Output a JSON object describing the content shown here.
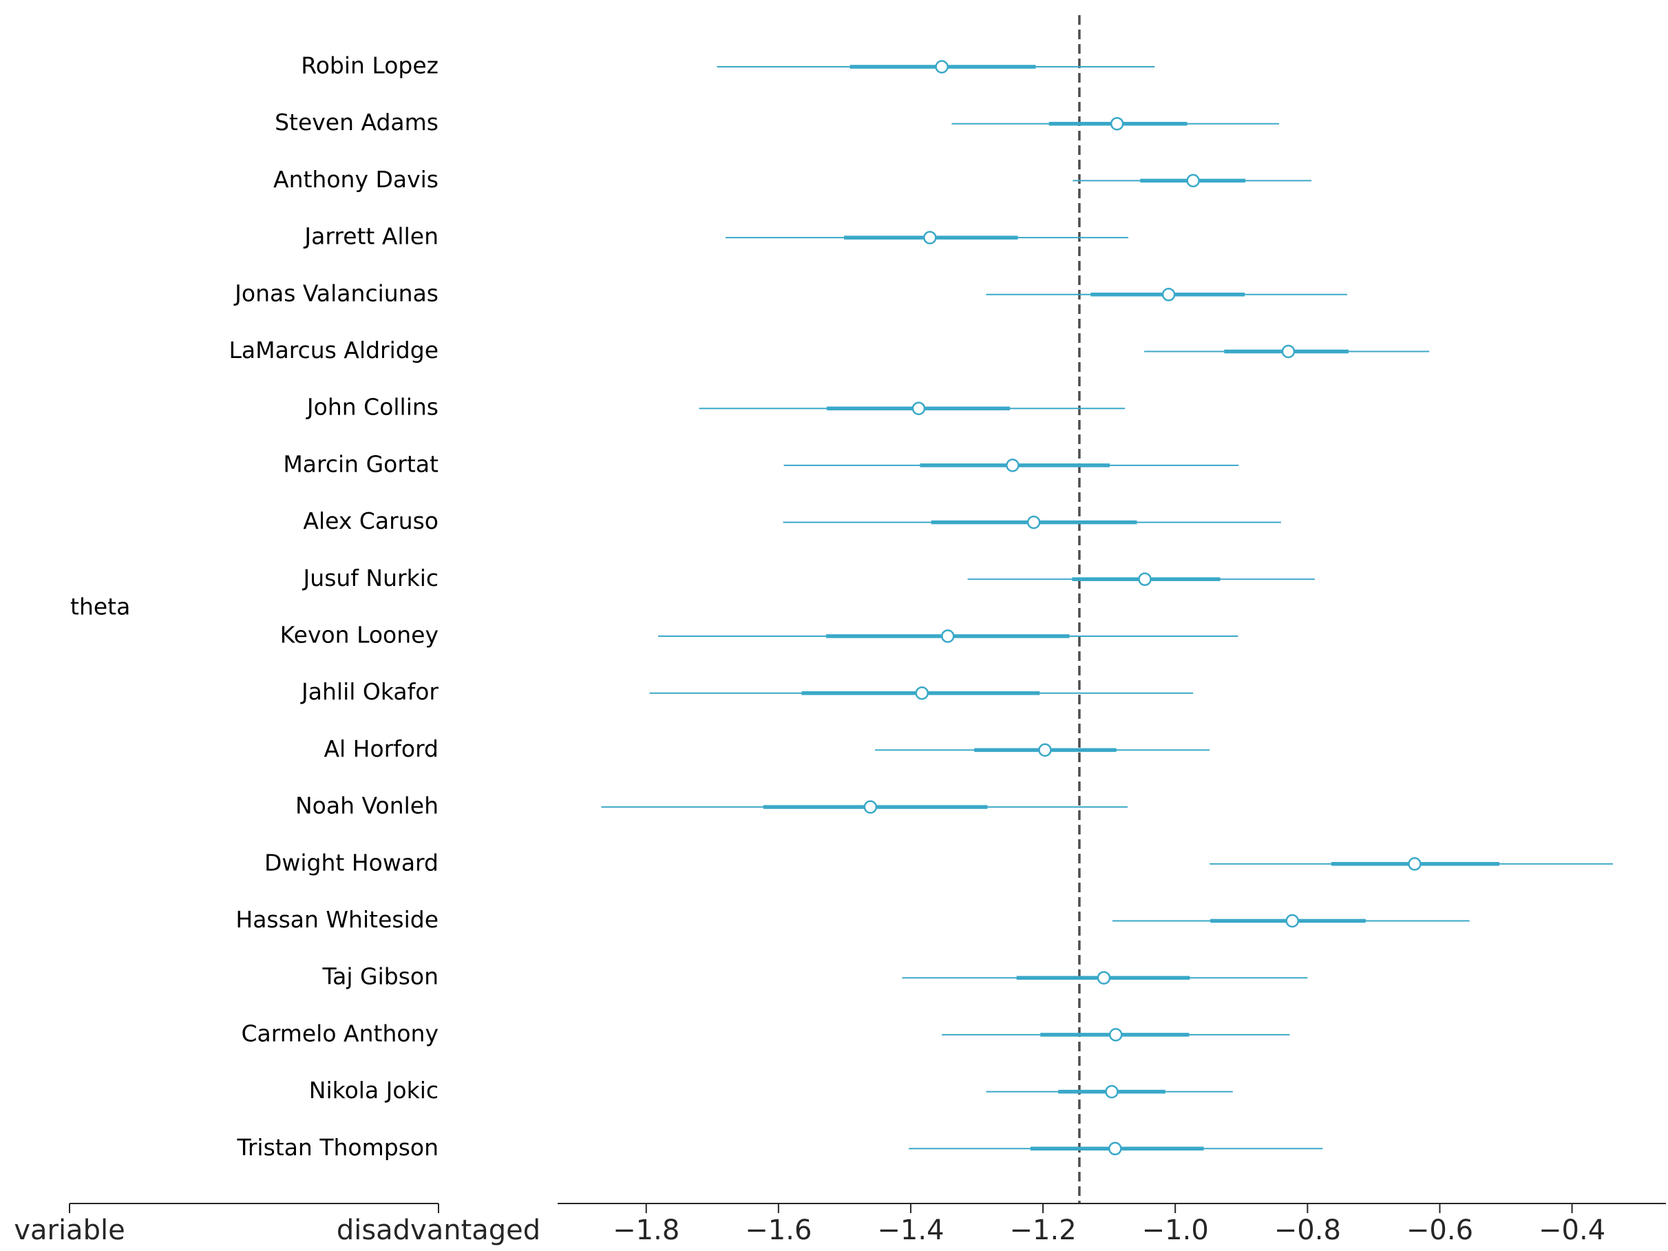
{
  "group_label": "theta",
  "column_labels": {
    "left": "variable",
    "right": "disadvantaged"
  },
  "colors": {
    "interval": "#3aa8c8",
    "marker_fill": "#ffffff",
    "reference_line": "#4d4d4d",
    "axis": "#262626"
  },
  "chart_data": {
    "type": "forest",
    "title": "",
    "xlabel": "",
    "ylabel": "",
    "xlim": [
      -1.934,
      -0.258
    ],
    "xticks": [
      -1.8,
      -1.6,
      -1.4,
      -1.2,
      -1.0,
      -0.8,
      -0.6,
      -0.4
    ],
    "xtick_labels": [
      "−1.8",
      "−1.6",
      "−1.4",
      "−1.2",
      "−1.0",
      "−0.8",
      "−0.6",
      "−0.4"
    ],
    "reference_line": -1.145,
    "grid": false,
    "rows": [
      {
        "name": "Robin Lopez",
        "mean": -1.353,
        "hdi_inner": [
          -1.492,
          -1.211
        ],
        "hdi_outer": [
          -1.693,
          -1.031
        ]
      },
      {
        "name": "Steven Adams",
        "mean": -1.088,
        "hdi_inner": [
          -1.191,
          -0.982
        ],
        "hdi_outer": [
          -1.338,
          -0.843
        ]
      },
      {
        "name": "Anthony Davis",
        "mean": -0.973,
        "hdi_inner": [
          -1.053,
          -0.894
        ],
        "hdi_outer": [
          -1.155,
          -0.794
        ]
      },
      {
        "name": "Jarrett Allen",
        "mean": -1.371,
        "hdi_inner": [
          -1.501,
          -1.238
        ],
        "hdi_outer": [
          -1.68,
          -1.071
        ]
      },
      {
        "name": "Jonas Valanciunas",
        "mean": -1.01,
        "hdi_inner": [
          -1.128,
          -0.895
        ],
        "hdi_outer": [
          -1.286,
          -0.74
        ]
      },
      {
        "name": "LaMarcus Aldridge",
        "mean": -0.829,
        "hdi_inner": [
          -0.926,
          -0.738
        ],
        "hdi_outer": [
          -1.047,
          -0.616
        ]
      },
      {
        "name": "John Collins",
        "mean": -1.388,
        "hdi_inner": [
          -1.527,
          -1.25
        ],
        "hdi_outer": [
          -1.72,
          -1.076
        ]
      },
      {
        "name": "Marcin Gortat",
        "mean": -1.246,
        "hdi_inner": [
          -1.386,
          -1.099
        ],
        "hdi_outer": [
          -1.592,
          -0.904
        ]
      },
      {
        "name": "Alex Caruso",
        "mean": -1.214,
        "hdi_inner": [
          -1.369,
          -1.058
        ],
        "hdi_outer": [
          -1.593,
          -0.84
        ]
      },
      {
        "name": "Jusuf Nurkic",
        "mean": -1.046,
        "hdi_inner": [
          -1.156,
          -0.932
        ],
        "hdi_outer": [
          -1.314,
          -0.789
        ]
      },
      {
        "name": "Kevon Looney",
        "mean": -1.344,
        "hdi_inner": [
          -1.528,
          -1.16
        ],
        "hdi_outer": [
          -1.782,
          -0.905
        ]
      },
      {
        "name": "Jahlil Okafor",
        "mean": -1.383,
        "hdi_inner": [
          -1.565,
          -1.205
        ],
        "hdi_outer": [
          -1.795,
          -0.973
        ]
      },
      {
        "name": "Al Horford",
        "mean": -1.197,
        "hdi_inner": [
          -1.304,
          -1.089
        ],
        "hdi_outer": [
          -1.454,
          -0.948
        ]
      },
      {
        "name": "Noah Vonleh",
        "mean": -1.461,
        "hdi_inner": [
          -1.623,
          -1.284
        ],
        "hdi_outer": [
          -1.868,
          -1.072
        ]
      },
      {
        "name": "Dwight Howard",
        "mean": -0.638,
        "hdi_inner": [
          -0.764,
          -0.51
        ],
        "hdi_outer": [
          -0.948,
          -0.338
        ]
      },
      {
        "name": "Hassan Whiteside",
        "mean": -0.823,
        "hdi_inner": [
          -0.947,
          -0.712
        ],
        "hdi_outer": [
          -1.095,
          -0.555
        ]
      },
      {
        "name": "Taj Gibson",
        "mean": -1.108,
        "hdi_inner": [
          -1.24,
          -0.978
        ],
        "hdi_outer": [
          -1.413,
          -0.8
        ]
      },
      {
        "name": "Carmelo Anthony",
        "mean": -1.09,
        "hdi_inner": [
          -1.204,
          -0.979
        ],
        "hdi_outer": [
          -1.353,
          -0.827
        ]
      },
      {
        "name": "Nikola Jokic",
        "mean": -1.096,
        "hdi_inner": [
          -1.177,
          -1.015
        ],
        "hdi_outer": [
          -1.286,
          -0.913
        ]
      },
      {
        "name": "Tristan Thompson",
        "mean": -1.091,
        "hdi_inner": [
          -1.219,
          -0.957
        ],
        "hdi_outer": [
          -1.403,
          -0.777
        ]
      }
    ]
  }
}
